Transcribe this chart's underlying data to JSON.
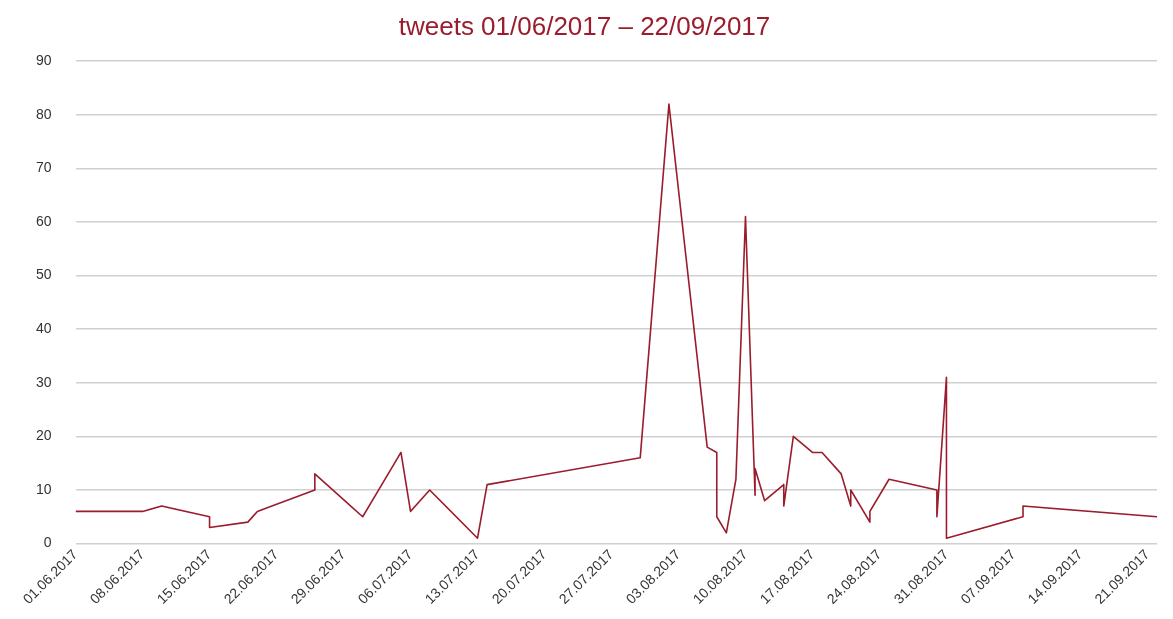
{
  "chart_data": {
    "type": "line",
    "title": "tweets 01/06/2017 – 22/09/2017",
    "x": [
      "2017-06-01",
      "2017-06-08",
      "2017-06-10",
      "2017-06-15",
      "2017-06-15",
      "2017-06-19",
      "2017-06-20",
      "2017-06-26",
      "2017-06-26",
      "2017-07-01",
      "2017-07-05",
      "2017-07-06",
      "2017-07-08",
      "2017-07-13",
      "2017-07-14",
      "2017-07-30",
      "2017-08-02",
      "2017-08-06",
      "2017-08-07",
      "2017-08-07",
      "2017-08-08",
      "2017-08-09",
      "2017-08-10",
      "2017-08-11",
      "2017-08-11",
      "2017-08-12",
      "2017-08-14",
      "2017-08-14",
      "2017-08-15",
      "2017-08-17",
      "2017-08-18",
      "2017-08-20",
      "2017-08-21",
      "2017-08-21",
      "2017-08-23",
      "2017-08-23",
      "2017-08-25",
      "2017-08-30",
      "2017-08-30",
      "2017-08-31",
      "2017-08-31",
      "2017-09-08",
      "2017-09-08",
      "2017-09-22"
    ],
    "series": [
      {
        "color": "#9b1c2c",
        "values": [
          6,
          6,
          7,
          5,
          3,
          4,
          6,
          10,
          13,
          5,
          17,
          6,
          10,
          1,
          11,
          16,
          82,
          18,
          17,
          5,
          2,
          12,
          61,
          9,
          14,
          8,
          11,
          7,
          20,
          17,
          17,
          13,
          7,
          10,
          4,
          6,
          12,
          10,
          5,
          31,
          1,
          5,
          7,
          5
        ]
      }
    ],
    "xlim": [
      "2017-06-01",
      "2017-09-22"
    ],
    "xticks": [
      {
        "value": "2017-06-01",
        "label": "01.06.2017"
      },
      {
        "value": "2017-06-08",
        "label": "08.06.2017"
      },
      {
        "value": "2017-06-15",
        "label": "15.06.2017"
      },
      {
        "value": "2017-06-22",
        "label": "22.06.2017"
      },
      {
        "value": "2017-06-29",
        "label": "29.06.2017"
      },
      {
        "value": "2017-07-06",
        "label": "06.07.2017"
      },
      {
        "value": "2017-07-13",
        "label": "13.07.2017"
      },
      {
        "value": "2017-07-20",
        "label": "20.07.2017"
      },
      {
        "value": "2017-07-27",
        "label": "27.07.2017"
      },
      {
        "value": "2017-08-03",
        "label": "03.08.2017"
      },
      {
        "value": "2017-08-10",
        "label": "10.08.2017"
      },
      {
        "value": "2017-08-17",
        "label": "17.08.2017"
      },
      {
        "value": "2017-08-24",
        "label": "24.08.2017"
      },
      {
        "value": "2017-08-31",
        "label": "31.08.2017"
      },
      {
        "value": "2017-09-07",
        "label": "07.09.2017"
      },
      {
        "value": "2017-09-14",
        "label": "14.09.2017"
      },
      {
        "value": "2017-09-21",
        "label": "21.09.2017"
      }
    ],
    "ylim": [
      0,
      90
    ],
    "yticks": [
      0,
      10,
      20,
      30,
      40,
      50,
      60,
      70,
      80,
      90
    ],
    "grid": "y",
    "legend": false,
    "marker": "none",
    "line_style": "solid"
  }
}
